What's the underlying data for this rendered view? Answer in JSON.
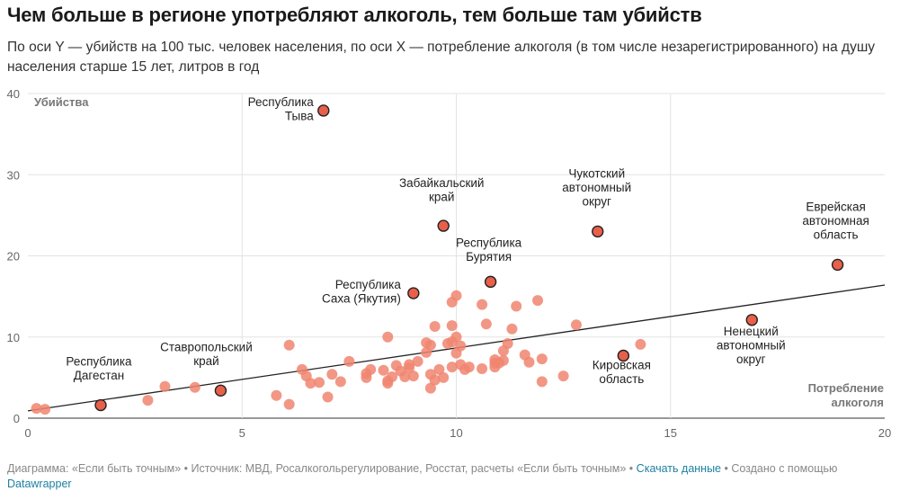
{
  "title": "Чем больше в регионе употребляют алкоголь, тем больше там убийств",
  "subtitle": "По оси Y — убийств на 100 тыс. человек населения, по оси X — потребление алкоголя (в том числе незарегистрированного) на душу населения старше 15 лет, литров в год",
  "footer": {
    "prefix": "Диаграмма: «Если быть точным» • Источник: МВД, Росалкогольрегулирование, Росстат, расчеты «Если быть точным» • ",
    "link": "Скачать данные",
    "mid": " • Создано с помощью ",
    "tool": "Datawrapper"
  },
  "colors": {
    "dot": "#f08570",
    "highlight": "#e8604a",
    "highlight_stroke": "#222222",
    "trend": "#222222",
    "grid": "#e3e3e3"
  },
  "chart_data": {
    "type": "scatter",
    "title": "Чем больше в регионе употребляют алкоголь, тем больше там убийств",
    "ylabel": "Убийства",
    "xlabel_lines": [
      "Потребление",
      "алкоголя"
    ],
    "xlim": [
      0,
      20
    ],
    "ylim": [
      0,
      40
    ],
    "xticks": [
      "0",
      "5",
      "10",
      "15",
      "20"
    ],
    "yticks": [
      "0",
      "10",
      "20",
      "30",
      "40"
    ],
    "trendline": [
      [
        0,
        0.9
      ],
      [
        20,
        16.4
      ]
    ],
    "points": [
      [
        0.2,
        1.2
      ],
      [
        0.4,
        1.1
      ],
      [
        2.8,
        2.2
      ],
      [
        3.2,
        3.9
      ],
      [
        3.9,
        3.8
      ],
      [
        5.8,
        2.8
      ],
      [
        6.1,
        1.7
      ],
      [
        6.1,
        9.0
      ],
      [
        6.4,
        6.0
      ],
      [
        6.5,
        5.2
      ],
      [
        6.6,
        4.3
      ],
      [
        6.8,
        4.4
      ],
      [
        7.0,
        2.6
      ],
      [
        7.1,
        5.4
      ],
      [
        7.3,
        4.5
      ],
      [
        7.5,
        7.0
      ],
      [
        7.9,
        5.5
      ],
      [
        7.9,
        5.0
      ],
      [
        8.0,
        6.0
      ],
      [
        8.3,
        5.9
      ],
      [
        8.4,
        10.0
      ],
      [
        8.4,
        4.3
      ],
      [
        8.4,
        4.6
      ],
      [
        8.5,
        5.1
      ],
      [
        8.6,
        6.5
      ],
      [
        8.7,
        5.8
      ],
      [
        8.8,
        5.1
      ],
      [
        8.9,
        6.2
      ],
      [
        8.9,
        6.6
      ],
      [
        9.0,
        5.2
      ],
      [
        9.1,
        7.0
      ],
      [
        9.3,
        8.1
      ],
      [
        9.3,
        9.3
      ],
      [
        9.4,
        9.0
      ],
      [
        9.4,
        5.4
      ],
      [
        9.4,
        3.7
      ],
      [
        9.5,
        4.7
      ],
      [
        9.5,
        11.3
      ],
      [
        9.6,
        6.0
      ],
      [
        9.7,
        5.0
      ],
      [
        9.8,
        9.2
      ],
      [
        9.9,
        6.3
      ],
      [
        9.9,
        9.4
      ],
      [
        9.9,
        11.4
      ],
      [
        9.9,
        14.3
      ],
      [
        10.0,
        10.0
      ],
      [
        10.0,
        15.1
      ],
      [
        10.0,
        8.0
      ],
      [
        10.1,
        8.9
      ],
      [
        10.1,
        6.6
      ],
      [
        10.2,
        6.0
      ],
      [
        10.3,
        6.3
      ],
      [
        10.6,
        6.1
      ],
      [
        10.6,
        14.0
      ],
      [
        10.7,
        11.6
      ],
      [
        10.9,
        7.2
      ],
      [
        10.9,
        6.8
      ],
      [
        10.9,
        6.3
      ],
      [
        11.0,
        6.8
      ],
      [
        11.1,
        7.1
      ],
      [
        11.1,
        8.3
      ],
      [
        11.2,
        9.2
      ],
      [
        11.3,
        11.0
      ],
      [
        11.4,
        13.8
      ],
      [
        11.6,
        7.8
      ],
      [
        11.7,
        6.9
      ],
      [
        11.9,
        14.5
      ],
      [
        12.0,
        4.5
      ],
      [
        12.0,
        7.3
      ],
      [
        12.5,
        5.2
      ],
      [
        12.8,
        11.5
      ],
      [
        14.3,
        9.1
      ]
    ],
    "highlighted": [
      {
        "name": "Республика Тыва",
        "x": 6.9,
        "y": 37.9
      },
      {
        "name": "Забайкальский край",
        "x": 9.7,
        "y": 23.7
      },
      {
        "name": "Чукотский автономный округ",
        "x": 13.3,
        "y": 23.0
      },
      {
        "name": "Еврейская автономная область",
        "x": 18.9,
        "y": 18.9
      },
      {
        "name": "Республика Бурятия",
        "x": 10.8,
        "y": 16.8
      },
      {
        "name": "Республика Саха (Якутия)",
        "x": 9.0,
        "y": 15.4
      },
      {
        "name": "Ненецкий автономный округ",
        "x": 16.9,
        "y": 12.1
      },
      {
        "name": "Кировская область",
        "x": 13.9,
        "y": 7.7
      },
      {
        "name": "Ставропольский край",
        "x": 4.5,
        "y": 3.4
      },
      {
        "name": "Республика Дагестан",
        "x": 1.7,
        "y": 1.6
      }
    ],
    "annotations": [
      {
        "region": "Республика Тыва",
        "lines": [
          "Республика",
          "Тыва"
        ],
        "anchor": "end"
      },
      {
        "region": "Забайкальский край",
        "lines": [
          "Забайкальский",
          "край"
        ],
        "anchor": "middle"
      },
      {
        "region": "Чукотский автономный округ",
        "lines": [
          "Чукотский",
          "автономный",
          "округ"
        ],
        "anchor": "middle"
      },
      {
        "region": "Еврейская автономная область",
        "lines": [
          "Еврейская",
          "автономная",
          "область"
        ],
        "anchor": "middle"
      },
      {
        "region": "Республика Бурятия",
        "lines": [
          "Республика",
          "Бурятия"
        ],
        "anchor": "middle"
      },
      {
        "region": "Республика Саха (Якутия)",
        "lines": [
          "Республика",
          "Саха (Якутия)"
        ],
        "anchor": "end"
      },
      {
        "region": "Ненецкий автономный округ",
        "lines": [
          "Ненецкий",
          "автономный",
          "округ"
        ],
        "anchor": "middle"
      },
      {
        "region": "Кировская область",
        "lines": [
          "Кировская",
          "область"
        ],
        "anchor": "middle"
      },
      {
        "region": "Ставропольский край",
        "lines": [
          "Ставропольский",
          "край"
        ],
        "anchor": "middle"
      },
      {
        "region": "Республика Дагестан",
        "lines": [
          "Республика",
          "Дагестан"
        ],
        "anchor": "middle"
      }
    ]
  }
}
